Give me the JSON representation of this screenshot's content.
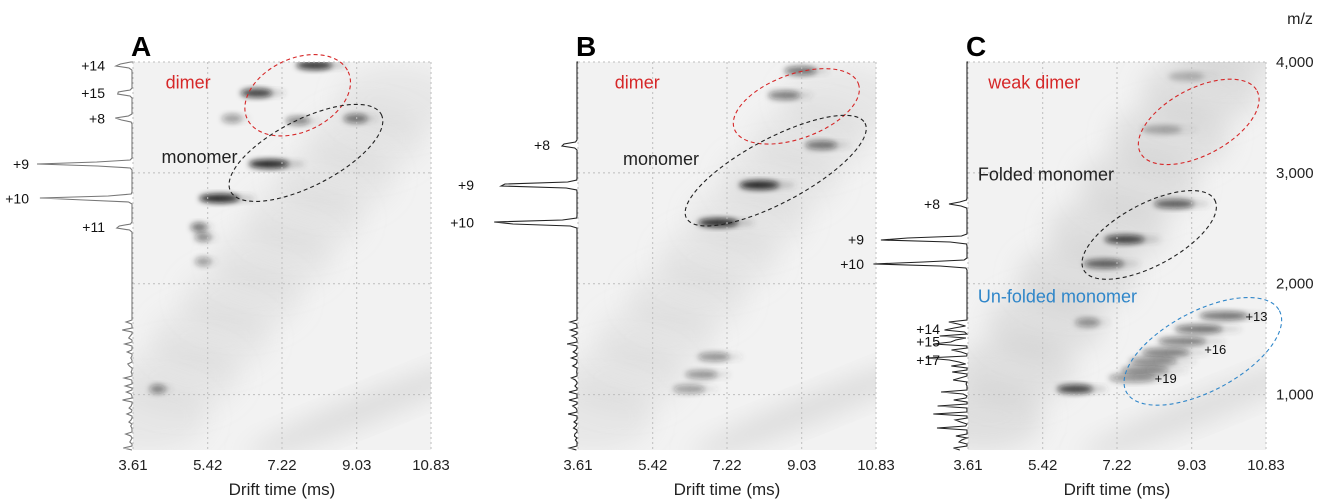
{
  "figure": {
    "yaxis_unit": "m/z",
    "yaxis_ticks": [
      "4,000",
      "3,000",
      "2,000",
      "1,000"
    ],
    "xaxis_ticks": [
      "3.61",
      "5.42",
      "7.22",
      "9.03",
      "10.83"
    ],
    "xlabel": "Drift time (ms)",
    "colors": {
      "dimer": "#d62728",
      "monomer": "#222222",
      "unfolded": "#2f86c9",
      "grid": "#bdbdbd",
      "background": "#f2f2f2"
    }
  },
  "panels": [
    {
      "letter": "A",
      "spectrum_labels": [
        {
          "text": "+14",
          "mz": 3970
        },
        {
          "text": "+15",
          "mz": 3720
        },
        {
          "text": "+8",
          "mz": 3490
        },
        {
          "text": "+9",
          "mz": 3080
        },
        {
          "text": "+10",
          "mz": 2770
        },
        {
          "text": "+11",
          "mz": 2510
        }
      ],
      "regions": [
        {
          "text": "dimer",
          "color": "dimer",
          "cx": 7.6,
          "cy": 3700,
          "rx": 1.35,
          "ry": 330,
          "angle": -25,
          "label_t": 4.4,
          "label_mz": 3760
        },
        {
          "text": "monomer",
          "color": "monomer",
          "cx": 7.8,
          "cy": 3180,
          "rx": 2.05,
          "ry": 300,
          "angle": -27,
          "label_t": 4.3,
          "label_mz": 3090
        }
      ],
      "blobs": [
        {
          "t": 8.0,
          "mz": 3970,
          "w": 0.9,
          "i": 0.9
        },
        {
          "t": 6.6,
          "mz": 3720,
          "w": 0.8,
          "i": 0.85
        },
        {
          "t": 6.0,
          "mz": 3490,
          "w": 0.5,
          "i": 0.4
        },
        {
          "t": 7.6,
          "mz": 3470,
          "w": 0.6,
          "i": 0.5
        },
        {
          "t": 9.0,
          "mz": 3490,
          "w": 0.6,
          "i": 0.6
        },
        {
          "t": 6.9,
          "mz": 3080,
          "w": 1.0,
          "i": 1.0
        },
        {
          "t": 5.7,
          "mz": 2770,
          "w": 1.0,
          "i": 1.0
        },
        {
          "t": 5.2,
          "mz": 2510,
          "w": 0.4,
          "i": 0.6
        },
        {
          "t": 5.3,
          "mz": 2420,
          "w": 0.4,
          "i": 0.5
        },
        {
          "t": 5.3,
          "mz": 2200,
          "w": 0.4,
          "i": 0.4
        },
        {
          "t": 4.2,
          "mz": 1050,
          "w": 0.4,
          "i": 0.5
        }
      ]
    },
    {
      "letter": "B",
      "spectrum_labels": [
        {
          "text": "+8",
          "mz": 3250
        },
        {
          "text": "+9",
          "mz": 2890
        },
        {
          "text": "+10",
          "mz": 2550
        }
      ],
      "regions": [
        {
          "text": "dimer",
          "color": "dimer",
          "cx": 8.9,
          "cy": 3600,
          "rx": 1.6,
          "ry": 290,
          "angle": -20,
          "label_t": 4.5,
          "label_mz": 3760
        },
        {
          "text": "monomer",
          "color": "monomer",
          "cx": 8.4,
          "cy": 3020,
          "rx": 2.45,
          "ry": 290,
          "angle": -28,
          "label_t": 4.7,
          "label_mz": 3070
        }
      ],
      "blobs": [
        {
          "t": 9.0,
          "mz": 3920,
          "w": 0.8,
          "i": 0.6
        },
        {
          "t": 8.6,
          "mz": 3700,
          "w": 0.8,
          "i": 0.55
        },
        {
          "t": 9.5,
          "mz": 3250,
          "w": 0.8,
          "i": 0.6
        },
        {
          "t": 8.0,
          "mz": 2890,
          "w": 1.0,
          "i": 1.0
        },
        {
          "t": 7.0,
          "mz": 2550,
          "w": 1.0,
          "i": 0.95
        },
        {
          "t": 6.9,
          "mz": 1340,
          "w": 0.8,
          "i": 0.45
        },
        {
          "t": 6.6,
          "mz": 1180,
          "w": 0.8,
          "i": 0.45
        },
        {
          "t": 6.3,
          "mz": 1050,
          "w": 0.8,
          "i": 0.4
        }
      ]
    },
    {
      "letter": "C",
      "spectrum_labels": [
        {
          "text": "+8",
          "mz": 2720
        },
        {
          "text": "+9",
          "mz": 2400
        },
        {
          "text": "+10",
          "mz": 2180
        },
        {
          "text": "+14",
          "mz": 1590
        },
        {
          "text": "+15",
          "mz": 1480
        },
        {
          "text": "+17",
          "mz": 1310
        }
      ],
      "regions": [
        {
          "text": "weak dimer",
          "color": "dimer",
          "cx": 9.2,
          "cy": 3460,
          "rx": 1.6,
          "ry": 300,
          "angle": -28,
          "label_t": 4.1,
          "label_mz": 3760
        },
        {
          "text": "Folded monomer",
          "color": "monomer",
          "cx": 8.0,
          "cy": 2440,
          "rx": 1.8,
          "ry": 280,
          "angle": -28,
          "label_t": 3.85,
          "label_mz": 2930
        },
        {
          "text": "Un-folded monomer",
          "color": "unfolded",
          "cx": 9.3,
          "cy": 1390,
          "rx": 2.1,
          "ry": 360,
          "angle": -28,
          "label_t": 3.85,
          "label_mz": 1830
        }
      ],
      "inner_labels": [
        {
          "text": "+13",
          "t": 10.6,
          "mz": 1710
        },
        {
          "text": "+16",
          "t": 9.6,
          "mz": 1410
        },
        {
          "text": "+19",
          "t": 8.4,
          "mz": 1150
        }
      ],
      "blobs": [
        {
          "t": 8.9,
          "mz": 3870,
          "w": 0.9,
          "i": 0.25
        },
        {
          "t": 8.3,
          "mz": 3390,
          "w": 1.0,
          "i": 0.3
        },
        {
          "t": 8.6,
          "mz": 2720,
          "w": 1.0,
          "i": 0.7
        },
        {
          "t": 7.4,
          "mz": 2400,
          "w": 1.0,
          "i": 0.85
        },
        {
          "t": 6.9,
          "mz": 2180,
          "w": 1.0,
          "i": 0.7
        },
        {
          "t": 9.8,
          "mz": 1710,
          "w": 1.2,
          "i": 0.6
        },
        {
          "t": 9.2,
          "mz": 1590,
          "w": 1.2,
          "i": 0.6
        },
        {
          "t": 8.8,
          "mz": 1480,
          "w": 1.2,
          "i": 0.55
        },
        {
          "t": 8.4,
          "mz": 1380,
          "w": 1.2,
          "i": 0.55
        },
        {
          "t": 8.1,
          "mz": 1300,
          "w": 1.2,
          "i": 0.5
        },
        {
          "t": 7.9,
          "mz": 1220,
          "w": 1.2,
          "i": 0.5
        },
        {
          "t": 7.6,
          "mz": 1150,
          "w": 1.2,
          "i": 0.45
        },
        {
          "t": 6.2,
          "mz": 1050,
          "w": 0.9,
          "i": 0.85
        },
        {
          "t": 6.5,
          "mz": 1650,
          "w": 0.6,
          "i": 0.45
        }
      ]
    }
  ],
  "chart_data": [
    {
      "type": "heatmap",
      "panel": "A",
      "xlabel": "Drift time (ms)",
      "ylabel": "m/z",
      "xlim": [
        3.61,
        10.83
      ],
      "ylim": [
        500,
        4000
      ],
      "x_ticks": [
        3.61,
        5.42,
        7.22,
        9.03,
        10.83
      ],
      "y_ticks": [
        1000,
        2000,
        3000,
        4000
      ],
      "grid": true,
      "annotations": [
        "dimer",
        "monomer",
        "+14",
        "+15",
        "+8",
        "+9",
        "+10",
        "+11"
      ]
    },
    {
      "type": "heatmap",
      "panel": "B",
      "xlabel": "Drift time (ms)",
      "ylabel": "m/z",
      "xlim": [
        3.61,
        10.83
      ],
      "ylim": [
        500,
        4000
      ],
      "x_ticks": [
        3.61,
        5.42,
        7.22,
        9.03,
        10.83
      ],
      "y_ticks": [
        1000,
        2000,
        3000,
        4000
      ],
      "grid": true,
      "annotations": [
        "dimer",
        "monomer",
        "+8",
        "+9",
        "+10"
      ]
    },
    {
      "type": "heatmap",
      "panel": "C",
      "xlabel": "Drift time (ms)",
      "ylabel": "m/z",
      "xlim": [
        3.61,
        10.83
      ],
      "ylim": [
        500,
        4000
      ],
      "x_ticks": [
        3.61,
        5.42,
        7.22,
        9.03,
        10.83
      ],
      "y_ticks": [
        1000,
        2000,
        3000,
        4000
      ],
      "grid": true,
      "annotations": [
        "weak dimer",
        "Folded monomer",
        "Un-folded monomer",
        "+8",
        "+9",
        "+10",
        "+14",
        "+15",
        "+17",
        "+13",
        "+16",
        "+19"
      ]
    }
  ]
}
